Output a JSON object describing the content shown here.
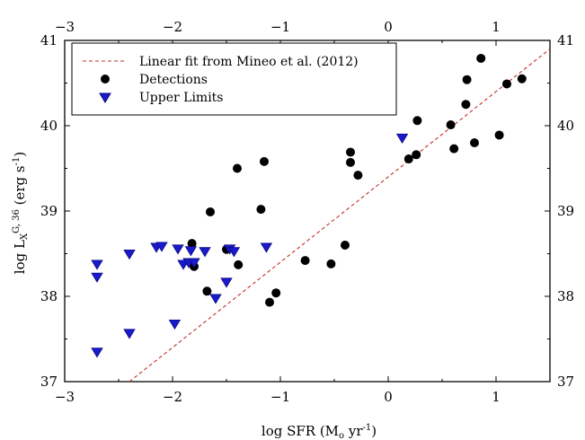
{
  "chart_data": {
    "type": "scatter",
    "xlabel": "log SFR (M",
    "xlabel_sub": "o",
    "xlabel_mid": " yr",
    "xlabel_sup": "-1",
    "xlabel_end": ")",
    "ylabel": "log L",
    "ylabel_sub": "X",
    "ylabel_sup": "G, 36",
    "ylabel_mid": " (erg s",
    "ylabel_sup2": "-1",
    "ylabel_end": ")",
    "xlim": [
      -3,
      1.5
    ],
    "ylim": [
      37,
      41
    ],
    "x_ticks": [
      -3,
      -2,
      -1,
      0,
      1
    ],
    "y_ticks": [
      37,
      38,
      39,
      40,
      41
    ],
    "x_tick_labels": [
      "−3",
      "−2",
      "−1",
      "0",
      "1"
    ],
    "y_tick_labels": [
      "37",
      "38",
      "39",
      "40",
      "41"
    ],
    "legend_position": "top-left",
    "colors": {
      "fit": "#c0302a",
      "detections": "#000000",
      "upper_limits": "#1a1acc"
    },
    "series": [
      {
        "name": "Linear fit from Mineo et al. (2012)",
        "kind": "line",
        "x": [
          -2.4,
          1.5
        ],
        "y": [
          37.0,
          40.9
        ]
      },
      {
        "name": "Detections",
        "kind": "circle",
        "points": [
          [
            -1.82,
            38.62
          ],
          [
            -1.8,
            38.35
          ],
          [
            -1.68,
            38.06
          ],
          [
            -1.65,
            38.99
          ],
          [
            -1.5,
            38.55
          ],
          [
            -1.4,
            39.5
          ],
          [
            -1.39,
            38.37
          ],
          [
            -1.18,
            39.02
          ],
          [
            -1.15,
            39.58
          ],
          [
            -1.1,
            37.93
          ],
          [
            -1.04,
            38.04
          ],
          [
            -0.77,
            38.42
          ],
          [
            -0.53,
            38.38
          ],
          [
            -0.4,
            38.6
          ],
          [
            -0.35,
            39.69
          ],
          [
            -0.35,
            39.57
          ],
          [
            -0.28,
            39.42
          ],
          [
            0.19,
            39.61
          ],
          [
            0.26,
            39.66
          ],
          [
            0.27,
            40.06
          ],
          [
            0.58,
            40.01
          ],
          [
            0.61,
            39.73
          ],
          [
            0.72,
            40.25
          ],
          [
            0.73,
            40.54
          ],
          [
            0.8,
            39.8
          ],
          [
            0.86,
            40.79
          ],
          [
            1.03,
            39.89
          ],
          [
            1.1,
            40.49
          ],
          [
            1.24,
            40.55
          ]
        ]
      },
      {
        "name": "Upper Limits",
        "kind": "triangle-down",
        "points": [
          [
            -2.7,
            38.37
          ],
          [
            -2.7,
            38.22
          ],
          [
            -2.7,
            37.34
          ],
          [
            -2.4,
            38.49
          ],
          [
            -2.4,
            37.56
          ],
          [
            -2.15,
            38.57
          ],
          [
            -2.1,
            38.58
          ],
          [
            -1.98,
            37.67
          ],
          [
            -1.95,
            38.55
          ],
          [
            -1.9,
            38.37
          ],
          [
            -1.85,
            38.39
          ],
          [
            -1.83,
            38.53
          ],
          [
            -1.8,
            38.39
          ],
          [
            -1.7,
            38.52
          ],
          [
            -1.6,
            37.97
          ],
          [
            -1.5,
            38.16
          ],
          [
            -1.47,
            38.55
          ],
          [
            -1.43,
            38.52
          ],
          [
            -1.13,
            38.57
          ],
          [
            0.13,
            39.85
          ]
        ]
      }
    ]
  }
}
